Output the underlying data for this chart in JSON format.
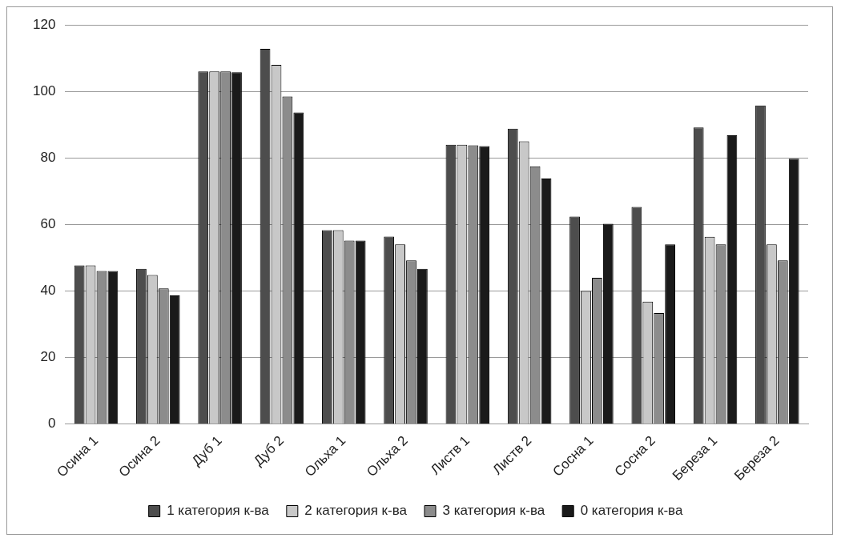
{
  "chart_data": {
    "type": "bar",
    "categories": [
      "Осина 1",
      "Осина 2",
      "Дуб 1",
      "Дуб 2",
      "Ольха 1",
      "Ольха 2",
      "Листв 1",
      "Листв 2",
      "Сосна 1",
      "Сосна 2",
      "Береза 1",
      "Береза 2"
    ],
    "series": [
      {
        "name": "1 категория к-ва",
        "color": "#4d4d4d",
        "values": [
          47.7,
          46.7,
          106,
          112.8,
          58.3,
          56.4,
          84,
          88.8,
          62.4,
          65.3,
          89.2,
          95.8
        ]
      },
      {
        "name": "2 категория к-ва",
        "color": "#c8c8c8",
        "values": [
          47.7,
          44.8,
          106,
          108,
          58.3,
          54,
          84,
          85,
          40,
          36.8,
          56.3,
          54
        ]
      },
      {
        "name": "3 категория к-ва",
        "color": "#8c8c8c",
        "values": [
          46,
          40.8,
          106,
          98.5,
          55.2,
          49.2,
          83.8,
          77.5,
          44,
          33.4,
          54,
          49.2
        ]
      },
      {
        "name": "0 категория к-ва",
        "color": "#1a1a1a",
        "values": [
          46,
          38.7,
          105.8,
          93.7,
          55.2,
          46.7,
          83.6,
          73.8,
          60.2,
          54,
          86.8,
          79.8
        ]
      }
    ],
    "ylim": [
      0,
      120
    ],
    "yticks": [
      0,
      20,
      40,
      60,
      80,
      100,
      120
    ],
    "grid": "y",
    "legend": "bottom"
  }
}
